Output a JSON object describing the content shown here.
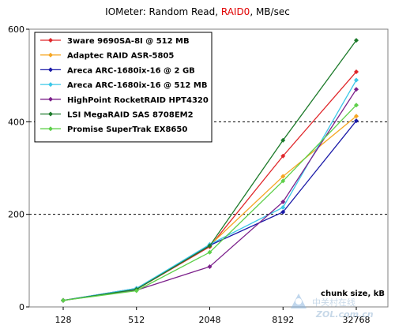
{
  "chart_data": {
    "type": "line",
    "title_parts": [
      "IOMeter: Random Read, ",
      "RAID0",
      ", MB/sec"
    ],
    "title_highlight_color": "#e00000",
    "xlabel": "chunk size, kB",
    "ylabel": "",
    "categories": [
      "128",
      "512",
      "2048",
      "8192",
      "32768"
    ],
    "ylim": [
      0,
      600
    ],
    "yticks": [
      0,
      200,
      400,
      600
    ],
    "grid_y_dashed": [
      200,
      400
    ],
    "legend_position": "top-left",
    "series": [
      {
        "name": "3ware 9690SA-8I @ 512 MB",
        "color": "#e0262a",
        "values": [
          14,
          38,
          130,
          326,
          508
        ]
      },
      {
        "name": "Adaptec RAID ASR-5805",
        "color": "#f5a623",
        "values": [
          14,
          38,
          133,
          282,
          412
        ]
      },
      {
        "name": "Areca ARC-1680ix-16 @ 2 GB",
        "color": "#1a1aa8",
        "values": [
          14,
          40,
          133,
          205,
          402
        ]
      },
      {
        "name": "Areca ARC-1680ix-16 @ 512 MB",
        "color": "#3cc8e8",
        "values": [
          14,
          40,
          135,
          215,
          490
        ]
      },
      {
        "name": "HighPoint RocketRAID HPT4320",
        "color": "#7b1f8a",
        "values": [
          14,
          36,
          87,
          227,
          470
        ]
      },
      {
        "name": "LSI MegaRAID SAS 8708EM2",
        "color": "#1c7a2a",
        "values": [
          14,
          38,
          132,
          360,
          576
        ]
      },
      {
        "name": "Promise SuperTrak EX8650",
        "color": "#5ed04a",
        "values": [
          14,
          35,
          118,
          272,
          436
        ]
      }
    ]
  },
  "watermark": {
    "site": "ZOL.com.cn",
    "cn": "中关村在线"
  }
}
